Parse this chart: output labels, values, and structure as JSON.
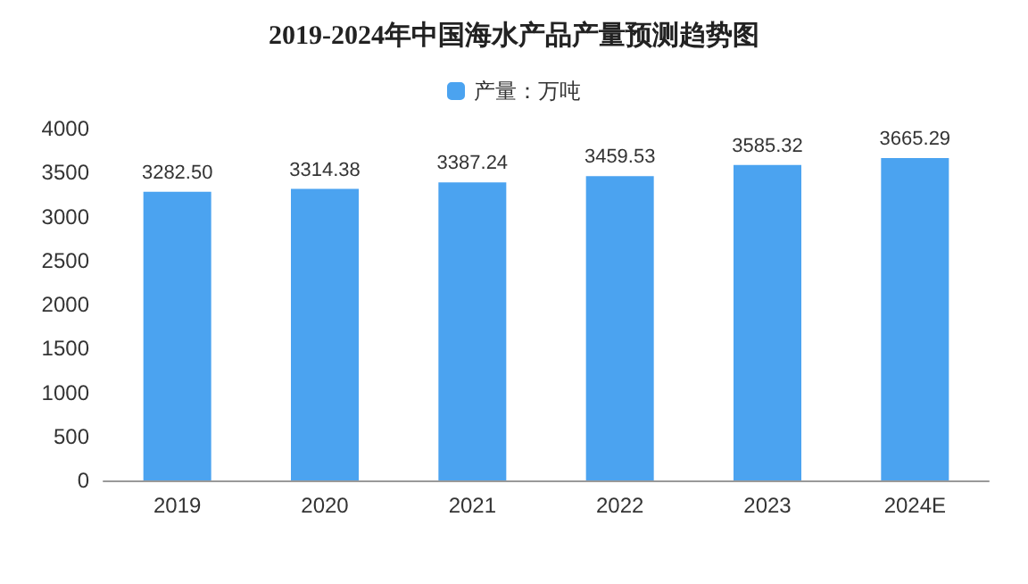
{
  "chart_data": {
    "type": "bar",
    "title": "2019-2024年中国海水产品产量预测趋势图",
    "categories": [
      "2019",
      "2020",
      "2021",
      "2022",
      "2023",
      "2024E"
    ],
    "series": [
      {
        "name": "产量：万吨",
        "color": "#4ba3f0",
        "values": [
          3282.5,
          3314.38,
          3387.24,
          3459.53,
          3585.32,
          3665.29
        ],
        "value_labels": [
          "3282.50",
          "3314.38",
          "3387.24",
          "3459.53",
          "3585.32",
          "3665.29"
        ]
      }
    ],
    "ylim": [
      0,
      4000
    ],
    "yticks": [
      0,
      500,
      1000,
      1500,
      2000,
      2500,
      3000,
      3500,
      4000
    ],
    "grid": false,
    "legend": "top"
  }
}
